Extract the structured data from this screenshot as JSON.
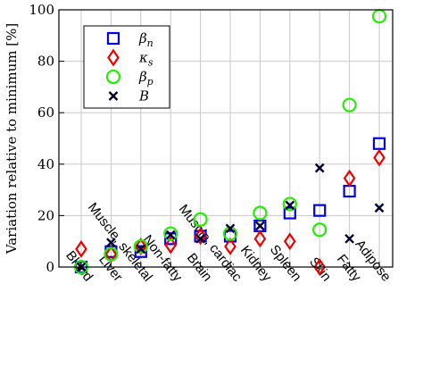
{
  "chart_data": {
    "type": "scatter",
    "ylabel": "Variation relative to minimum [%]",
    "ylim": [
      0,
      100
    ],
    "yticks": [
      0,
      20,
      40,
      60,
      80,
      100
    ],
    "grid": true,
    "legend_position": "top-left",
    "categories": [
      "Blood",
      "Liver",
      "Muscle, skeletal",
      "Non-fatty",
      "Brain",
      "Muscle, cardiac",
      "Kidney",
      "Spleen",
      "Skin",
      "Fatty",
      "Adipose"
    ],
    "series": [
      {
        "name": "β_n",
        "label_base": "β",
        "label_sub": "n",
        "marker": "square",
        "color": "#0000e0",
        "values": [
          0,
          6,
          6,
          11,
          12,
          12,
          16,
          21,
          22,
          29.5,
          48
        ]
      },
      {
        "name": "κ_s",
        "label_base": "κ",
        "label_sub": "s",
        "marker": "diamond",
        "color": "#ee0000",
        "values": [
          7,
          5,
          8,
          8.5,
          12,
          8,
          11,
          10,
          0,
          34.5,
          42.5
        ]
      },
      {
        "name": "β_p",
        "label_base": "β",
        "label_sub": "p",
        "marker": "circle",
        "color": "#22ee00",
        "values": [
          0,
          5,
          8,
          13,
          18.5,
          13,
          21,
          24.5,
          14.5,
          63,
          97.5
        ]
      },
      {
        "name": "B",
        "label_base": "B",
        "label_sub": "",
        "marker": "x",
        "color": "#000033",
        "values": [
          0,
          9.5,
          7,
          12.5,
          11,
          15,
          16,
          24,
          38.5,
          11,
          23
        ]
      }
    ]
  }
}
